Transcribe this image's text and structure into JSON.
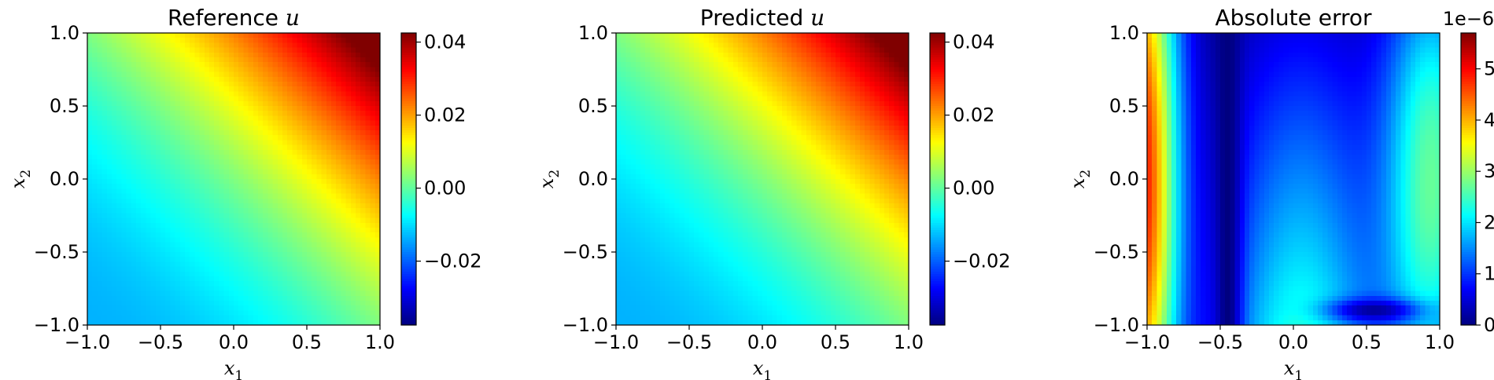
{
  "chart_data": [
    {
      "type": "heatmap",
      "title": "Reference u",
      "title_prefix": "Reference ",
      "title_var": "u",
      "xlabel_var": "x",
      "xlabel_sub": "1",
      "ylabel_var": "x",
      "ylabel_sub": "2",
      "xlim": [
        -1.0,
        1.0
      ],
      "ylim": [
        -1.0,
        1.0
      ],
      "xticks": [
        -1.0,
        -0.5,
        0.0,
        0.5,
        1.0
      ],
      "xtick_labels": [
        "−1.0",
        "−0.5",
        "0.0",
        "0.5",
        "1.0"
      ],
      "yticks": [
        -1.0,
        -0.5,
        0.0,
        0.5,
        1.0
      ],
      "ytick_labels": [
        "−1.0",
        "−0.5",
        "0.0",
        "0.5",
        "1.0"
      ],
      "field": "u",
      "colormap": "jet",
      "colorbar": {
        "range": [
          -0.0375,
          0.0425
        ],
        "ticks": [
          -0.02,
          0.0,
          0.02,
          0.04
        ],
        "tick_labels": [
          "−0.02",
          "0.00",
          "0.02",
          "0.04"
        ],
        "offset_label": ""
      },
      "grid": false
    },
    {
      "type": "heatmap",
      "title": "Predicted u",
      "title_prefix": "Predicted ",
      "title_var": "u",
      "xlabel_var": "x",
      "xlabel_sub": "1",
      "ylabel_var": "x",
      "ylabel_sub": "2",
      "xlim": [
        -1.0,
        1.0
      ],
      "ylim": [
        -1.0,
        1.0
      ],
      "xticks": [
        -1.0,
        -0.5,
        0.0,
        0.5,
        1.0
      ],
      "xtick_labels": [
        "−1.0",
        "−0.5",
        "0.0",
        "0.5",
        "1.0"
      ],
      "yticks": [
        -1.0,
        -0.5,
        0.0,
        0.5,
        1.0
      ],
      "ytick_labels": [
        "−1.0",
        "−0.5",
        "0.0",
        "0.5",
        "1.0"
      ],
      "field": "u",
      "colormap": "jet",
      "colorbar": {
        "range": [
          -0.0375,
          0.0425
        ],
        "ticks": [
          -0.02,
          0.0,
          0.02,
          0.04
        ],
        "tick_labels": [
          "−0.02",
          "0.00",
          "0.02",
          "0.04"
        ],
        "offset_label": ""
      },
      "grid": false
    },
    {
      "type": "heatmap",
      "title": "Absolute error",
      "title_prefix": "Absolute error",
      "title_var": "",
      "xlabel_var": "x",
      "xlabel_sub": "1",
      "ylabel_var": "x",
      "ylabel_sub": "2",
      "xlim": [
        -1.0,
        1.0
      ],
      "ylim": [
        -1.0,
        1.0
      ],
      "xticks": [
        -1.0,
        -0.5,
        0.0,
        0.5,
        1.0
      ],
      "xtick_labels": [
        "−1.0",
        "−0.5",
        "0.0",
        "0.5",
        "1.0"
      ],
      "yticks": [
        -1.0,
        -0.5,
        0.0,
        0.5,
        1.0
      ],
      "ytick_labels": [
        "−1.0",
        "−0.5",
        "0.0",
        "0.5",
        "1.0"
      ],
      "field": "error",
      "colormap": "jet",
      "colorbar": {
        "range": [
          0.0,
          5.7
        ],
        "ticks": [
          0,
          1,
          2,
          3,
          4,
          5
        ],
        "tick_labels": [
          "0",
          "1",
          "2",
          "3",
          "4",
          "5"
        ],
        "offset_label": "1e−6"
      },
      "grid": false
    }
  ]
}
